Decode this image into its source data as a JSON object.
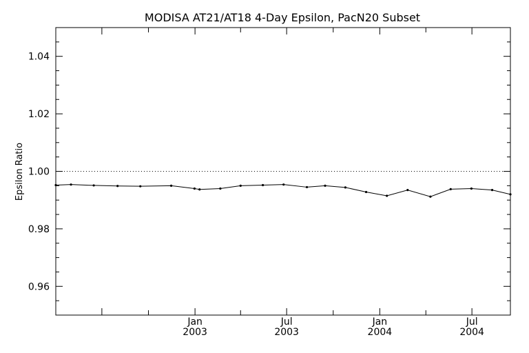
{
  "chart_data": {
    "type": "line",
    "title": "MODISA AT21/AT18 4-Day Epsilon, PacN20 Subset",
    "xlabel": "",
    "ylabel": "Epsilon Ratio",
    "xlim": [
      "2002-04-01",
      "2004-09-15"
    ],
    "ylim": [
      0.95,
      1.05
    ],
    "y_ticks": [
      0.96,
      0.98,
      1.0,
      1.02,
      1.04
    ],
    "y_tick_labels": [
      "0.96",
      "0.98",
      "1.00",
      "1.02",
      "1.04"
    ],
    "x_ticks": [
      {
        "date": "2003-01-01",
        "label": [
          "Jan",
          "2003"
        ]
      },
      {
        "date": "2003-07-01",
        "label": [
          "Jul",
          "2003"
        ]
      },
      {
        "date": "2004-01-01",
        "label": [
          "Jan",
          "2004"
        ]
      },
      {
        "date": "2004-07-01",
        "label": [
          "Jul",
          "2004"
        ]
      }
    ],
    "reference_line": {
      "y": 1.0,
      "style": "dotted"
    },
    "grid": false,
    "series": [
      {
        "x": [
          "2002-04-01",
          "2002-05-01",
          "2002-06-15",
          "2002-08-01",
          "2002-09-15",
          "2002-11-15",
          "2002-12-31",
          "2003-01-10",
          "2003-02-20",
          "2003-04-01",
          "2003-05-15",
          "2003-06-25",
          "2003-08-10",
          "2003-09-15",
          "2003-10-25",
          "2003-12-05",
          "2004-01-15",
          "2004-02-25",
          "2004-04-10",
          "2004-05-20",
          "2004-06-30",
          "2004-08-10",
          "2004-09-15"
        ],
        "y": [
          0.9952,
          0.9954,
          0.9951,
          0.9949,
          0.9948,
          0.995,
          0.994,
          0.9937,
          0.994,
          0.995,
          0.9952,
          0.9954,
          0.9945,
          0.995,
          0.9944,
          0.9928,
          0.9915,
          0.9935,
          0.9912,
          0.9938,
          0.994,
          0.9935,
          0.992
        ],
        "color": "#000000"
      }
    ]
  }
}
